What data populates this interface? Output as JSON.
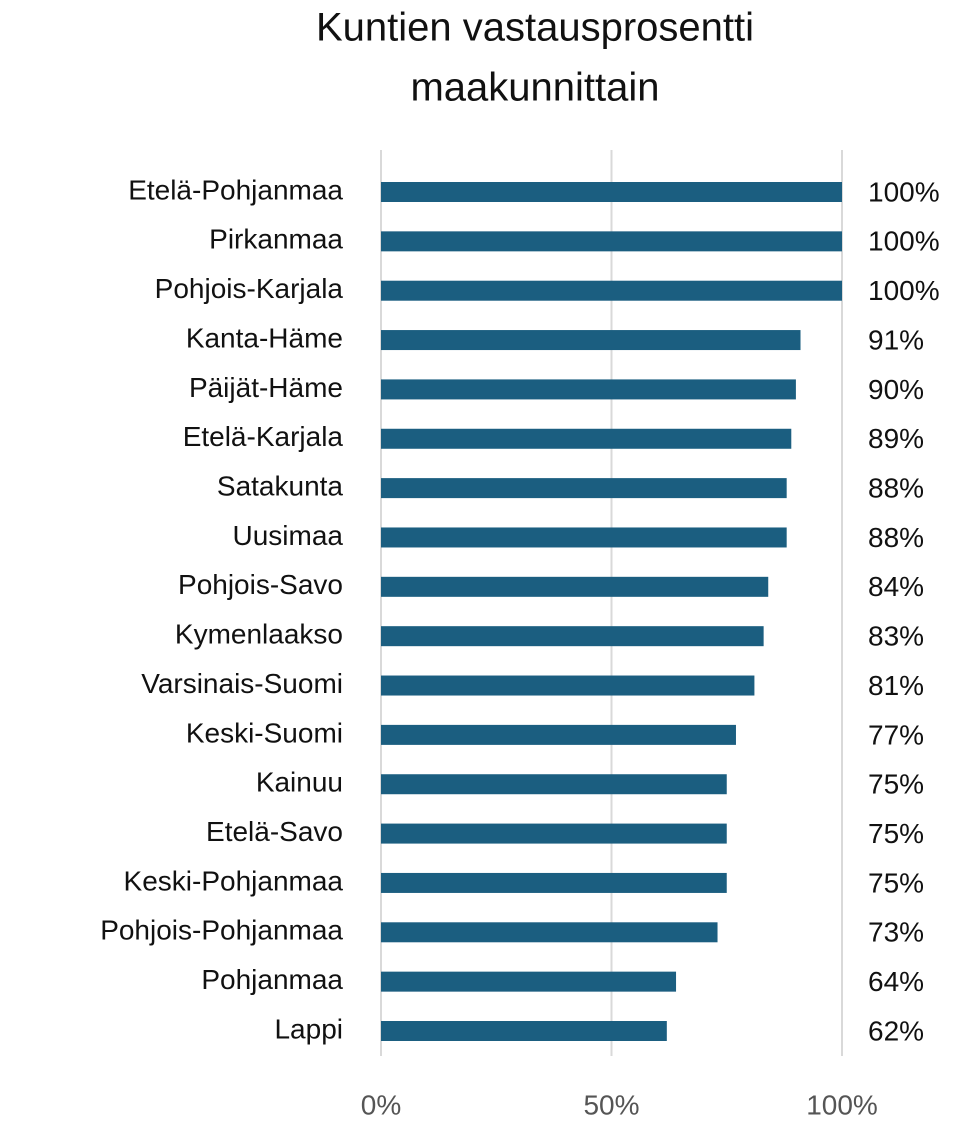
{
  "chart_data": {
    "type": "barh",
    "title": [
      "Kuntien vastausprosentti",
      "maakunnittain"
    ],
    "categories": [
      "Etelä-Pohjanmaa",
      "Pirkanmaa",
      "Pohjois-Karjala",
      "Kanta-Häme",
      "Päijät-Häme",
      "Etelä-Karjala",
      "Satakunta",
      "Uusimaa",
      "Pohjois-Savo",
      "Kymenlaakso",
      "Varsinais-Suomi",
      "Keski-Suomi",
      "Kainuu",
      "Etelä-Savo",
      "Keski-Pohjanmaa",
      "Pohjois-Pohjanmaa",
      "Pohjanmaa",
      "Lappi"
    ],
    "values": [
      100,
      100,
      100,
      91,
      90,
      89,
      88,
      88,
      84,
      83,
      81,
      77,
      75,
      75,
      75,
      73,
      64,
      62
    ],
    "value_labels": [
      "100%",
      "100%",
      "100%",
      "91%",
      "90%",
      "89%",
      "88%",
      "88%",
      "84%",
      "83%",
      "81%",
      "77%",
      "75%",
      "75%",
      "75%",
      "73%",
      "64%",
      "62%"
    ],
    "color": "#1b5e80",
    "xlim": [
      0,
      100
    ],
    "xticks": [
      {
        "value": 0,
        "label": "0%"
      },
      {
        "value": 50,
        "label": "50%"
      },
      {
        "value": 100,
        "label": "100%"
      }
    ],
    "grid": true
  }
}
